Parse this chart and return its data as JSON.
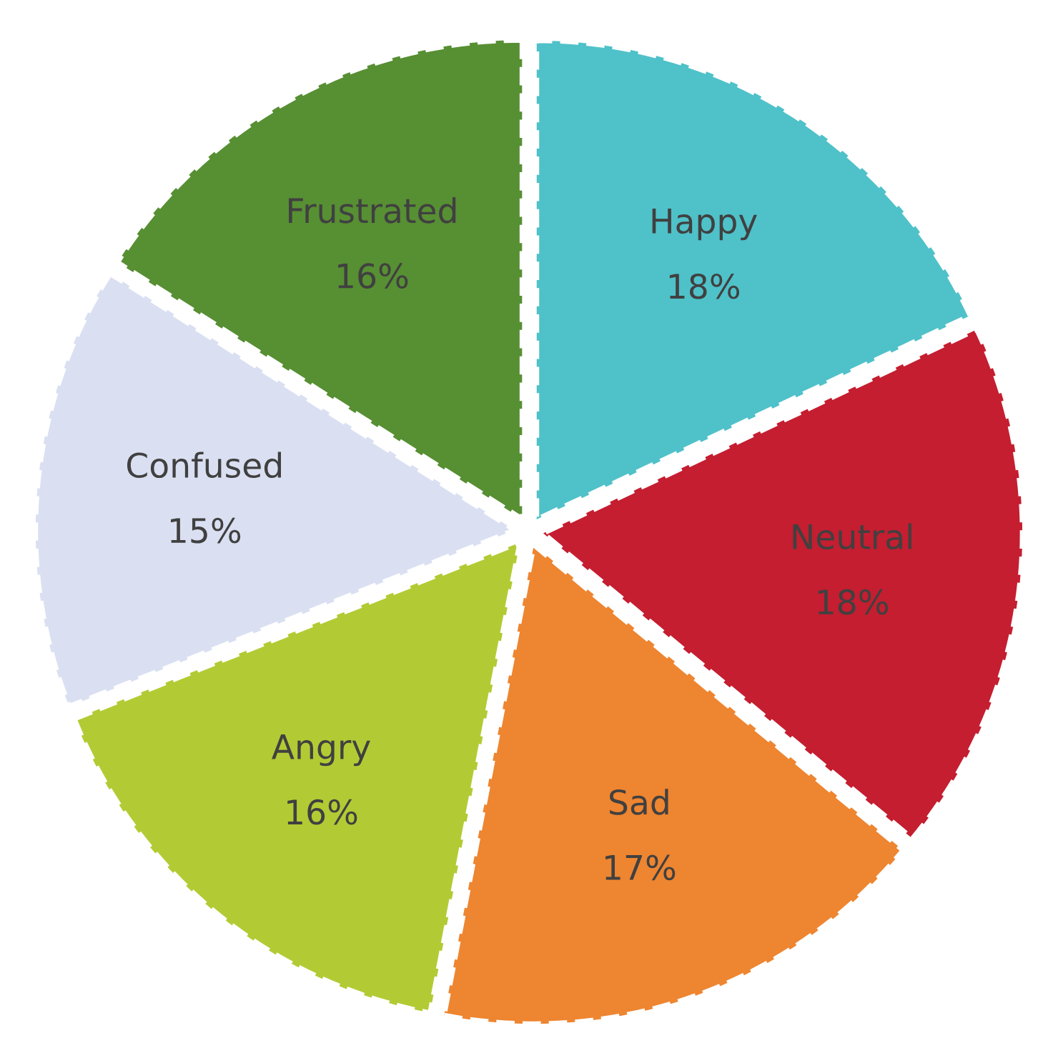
{
  "chart_data": {
    "type": "pie",
    "categories": [
      "Happy",
      "Neutral",
      "Sad",
      "Angry",
      "Confused",
      "Frustrated"
    ],
    "values": [
      18,
      18,
      17,
      16,
      15,
      16
    ],
    "value_labels": [
      "18%",
      "18%",
      "17%",
      "16%",
      "15%",
      "16%"
    ],
    "colors": [
      "#4fc1c9",
      "#c41e30",
      "#ee8530",
      "#b2cb34",
      "#dae0f2",
      "#578f33"
    ]
  }
}
